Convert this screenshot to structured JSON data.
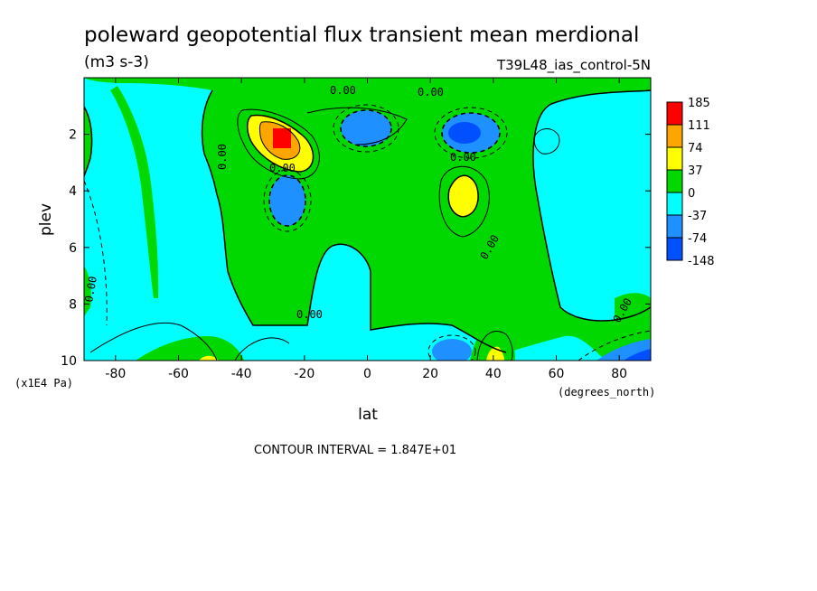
{
  "chart_data": {
    "type": "heatmap",
    "title": "poleward geopotential flux transient mean merdional",
    "units": "(m3 s-3)",
    "run_label": "T39L48_ias_control-5N",
    "xlabel": "lat",
    "x_units": "(degrees_north)",
    "ylabel": "plev",
    "y_units": "(x1E4 Pa)",
    "xlim": [
      -90,
      90
    ],
    "ylim": [
      10,
      0
    ],
    "x_ticks": [
      "-80",
      "-60",
      "-40",
      "-20",
      "0",
      "20",
      "40",
      "60",
      "80"
    ],
    "y_ticks": [
      "2",
      "4",
      "6",
      "8",
      "10"
    ],
    "contour_interval_text": "CONTOUR INTERVAL = 1.847E+01",
    "contour_label": "0.00",
    "colorbar_levels": [
      "185",
      "111",
      "74",
      "37",
      "0",
      "-37",
      "-74",
      "-148"
    ],
    "colorbar_colors": [
      "#ff0000",
      "#ffa500",
      "#ffff00",
      "#00d800",
      "#00ffff",
      "#1e90ff",
      "#0050ff"
    ],
    "background_color": "#00ffff",
    "features": [
      {
        "type": "max",
        "lat": -25,
        "plev": 2.3,
        "value": 185
      },
      {
        "type": "min",
        "lat": -25,
        "plev": 4.2,
        "value": -74
      },
      {
        "type": "min",
        "lat": 5,
        "plev": 1.8,
        "value": -74
      },
      {
        "type": "min",
        "lat": 32,
        "plev": 1.9,
        "value": -74
      },
      {
        "type": "max",
        "lat": 30,
        "plev": 4.0,
        "value": 37
      },
      {
        "type": "max",
        "lat": 40,
        "plev": 9.8,
        "value": 37
      },
      {
        "type": "min",
        "lat": 30,
        "plev": 9.5,
        "value": -74
      },
      {
        "type": "min",
        "lat": 82,
        "plev": 9.8,
        "value": -74
      }
    ]
  }
}
